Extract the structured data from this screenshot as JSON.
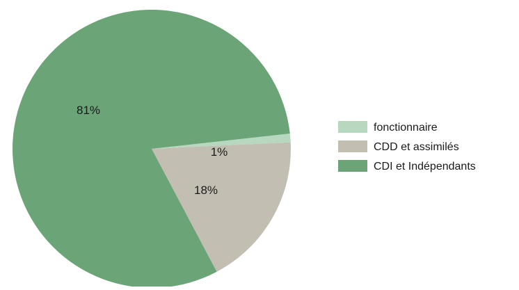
{
  "chart_data": {
    "type": "pie",
    "slices": [
      {
        "label": "fonctionnaire",
        "value": 1,
        "display": "1%",
        "color": "#b7d7bf"
      },
      {
        "label": "CDD et assimilés",
        "value": 18,
        "display": "18%",
        "color": "#c2bfb2"
      },
      {
        "label": "CDI et Indépendants",
        "value": 81,
        "display": "81%",
        "color": "#6aa477"
      }
    ],
    "legend_position": "right",
    "title": ""
  }
}
